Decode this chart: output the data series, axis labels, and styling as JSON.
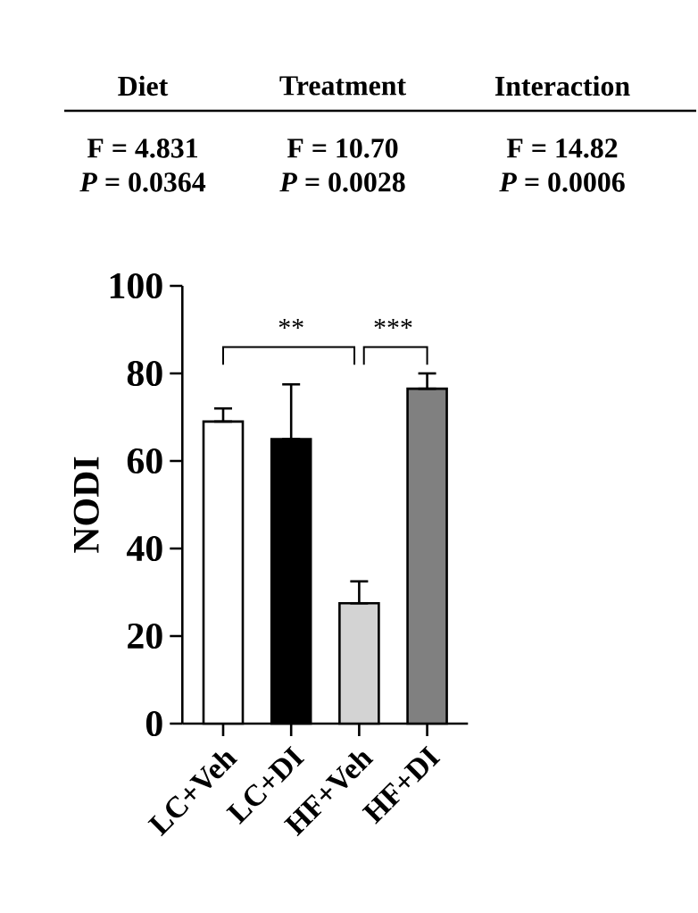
{
  "chart_data": {
    "type": "bar",
    "ylabel": "NODI",
    "categories": [
      "LC+Veh",
      "LC+DI",
      "HF+Veh",
      "HF+DI"
    ],
    "values": [
      69,
      65,
      27.5,
      76.5
    ],
    "errors": [
      [
        69,
        72
      ],
      [
        65,
        77.5
      ],
      [
        27.5,
        32.5
      ],
      [
        76.5,
        80
      ]
    ],
    "colors": [
      "#ffffff",
      "#000000",
      "#d3d3d3",
      "#808080"
    ],
    "ylim": [
      0,
      100
    ],
    "yticks": [
      0,
      20,
      40,
      60,
      80,
      100
    ],
    "annotations": [
      "Diet",
      "Treatment",
      "Interaction",
      "F = 4.831",
      "F = 10.70",
      "F = 14.82",
      "*P* = 0.0364",
      "*P* = 0.0028",
      "*P* = 0.0006",
      "**",
      "***"
    ]
  }
}
